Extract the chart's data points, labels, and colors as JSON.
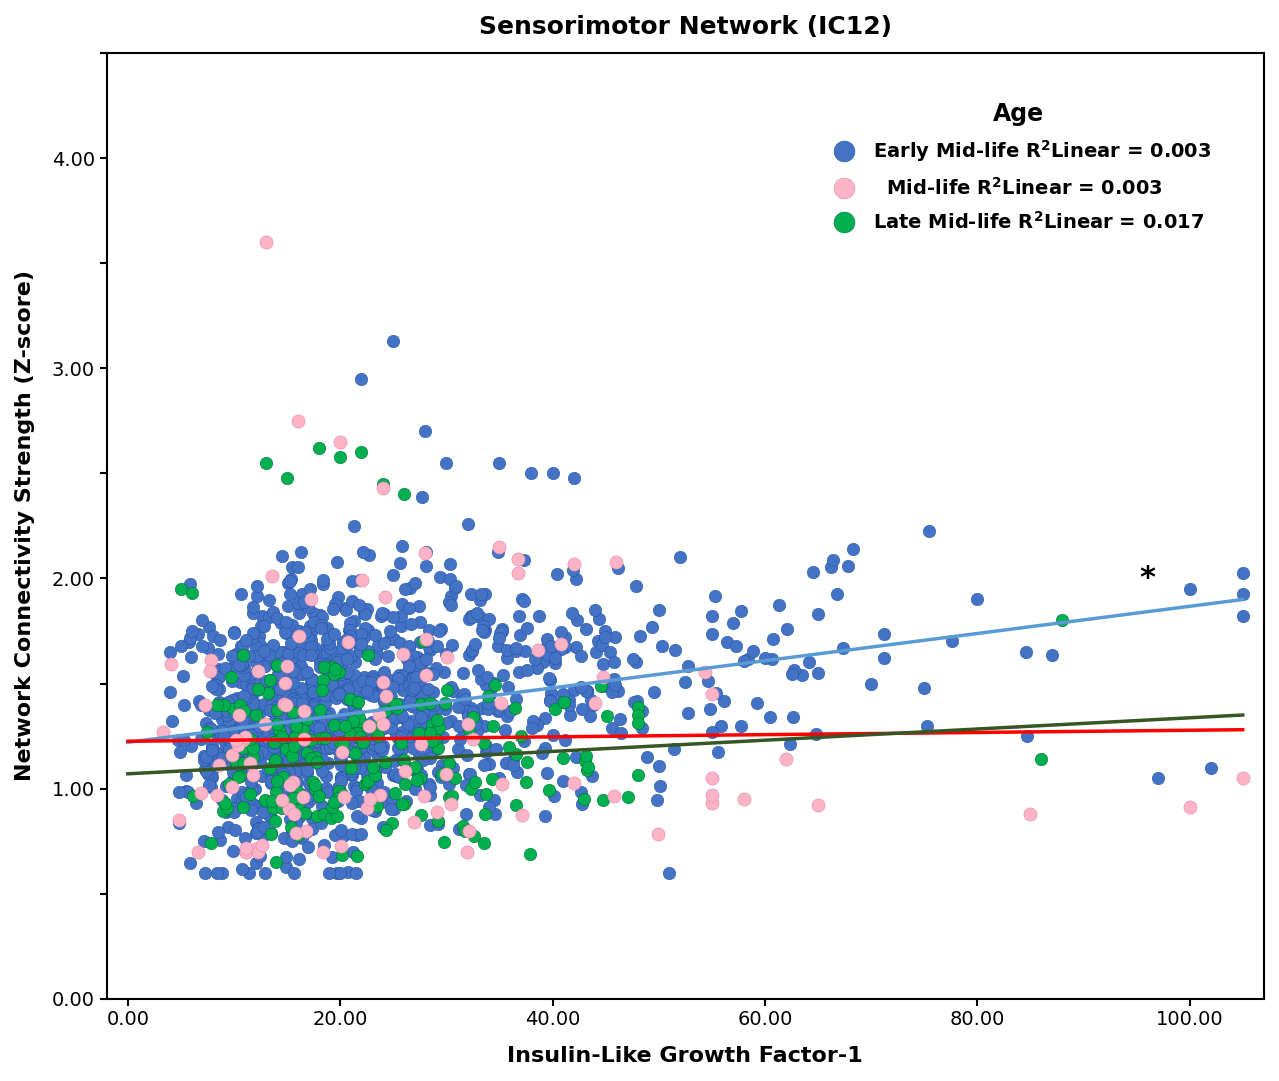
{
  "title": "Sensorimotor Network (IC12)",
  "xlabel": "Insulin-Like Growth Factor-1",
  "ylabel": "Network Connectivity Strength (Z-score)",
  "legend_title": "Age",
  "xlim": [
    -2,
    107
  ],
  "ylim": [
    0.0,
    4.5
  ],
  "xticks": [
    0.0,
    20.0,
    40.0,
    60.0,
    80.0,
    100.0
  ],
  "xtick_labels": [
    "0.00",
    "20.00",
    "40.00",
    "60.00",
    "80.00",
    "100.00"
  ],
  "ytick_labels": [
    "0.00",
    "",
    "1.00",
    "",
    "2.00",
    "",
    "3.00",
    "",
    "4.00",
    ""
  ],
  "yticks": [
    0.0,
    0.5,
    1.0,
    1.5,
    2.0,
    2.5,
    3.0,
    3.5,
    4.0,
    4.5
  ],
  "groups": {
    "early": {
      "color": "#4472C4",
      "edge_color": "#2255AA",
      "n": 1200,
      "line_color": "#5B9BD5",
      "line_y0": 1.22,
      "line_y1": 1.9
    },
    "mid": {
      "color": "#FFB3C6",
      "edge_color": "#DD88AA",
      "n": 90,
      "line_color": "#FF0000",
      "line_y0": 1.225,
      "line_y1": 1.28
    },
    "late": {
      "color": "#00B050",
      "edge_color": "#007030",
      "n": 200,
      "line_color": "#375623",
      "line_y0": 1.07,
      "line_y1": 1.35
    }
  },
  "star_x": 96.0,
  "star_y": 2.0,
  "background_color": "#FFFFFF",
  "title_fontsize": 18,
  "label_fontsize": 16,
  "tick_fontsize": 14,
  "legend_fontsize": 14
}
